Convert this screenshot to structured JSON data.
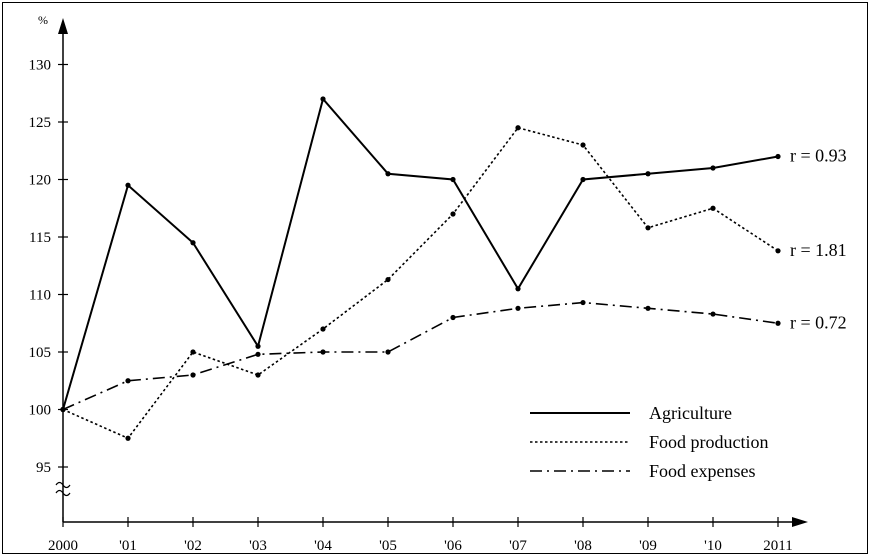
{
  "chart_data": {
    "type": "line",
    "ylabel": "%",
    "ylim": [
      93,
      133
    ],
    "y_ticks": [
      95,
      100,
      105,
      110,
      115,
      120,
      125,
      130
    ],
    "y_axis_break": true,
    "categories": [
      "2000",
      "'01",
      "'02",
      "'03",
      "'04",
      "'05",
      "'06",
      "'07",
      "'08",
      "'09",
      "'10",
      "2011"
    ],
    "series": [
      {
        "name": "Agriculture",
        "style": "solid",
        "values": [
          100,
          119.5,
          114.5,
          105.5,
          127,
          120.5,
          120,
          110.5,
          120,
          120.5,
          121,
          122
        ],
        "annotation": "r = 0.93"
      },
      {
        "name": "Food production",
        "style": "dotted",
        "values": [
          100,
          97.5,
          105,
          103,
          107,
          111.3,
          117,
          124.5,
          123,
          115.8,
          117.5,
          113.8
        ],
        "annotation": "r = 1.81"
      },
      {
        "name": "Food expenses",
        "style": "dash-dot",
        "values": [
          100,
          102.5,
          103,
          104.8,
          105,
          105,
          108,
          108.8,
          109.3,
          108.8,
          108.3,
          107.5
        ],
        "annotation": "r = 0.72"
      }
    ],
    "legend_position": "bottom-right",
    "grid": false,
    "colors": {
      "line": "#000000",
      "background": "#ffffff"
    }
  }
}
